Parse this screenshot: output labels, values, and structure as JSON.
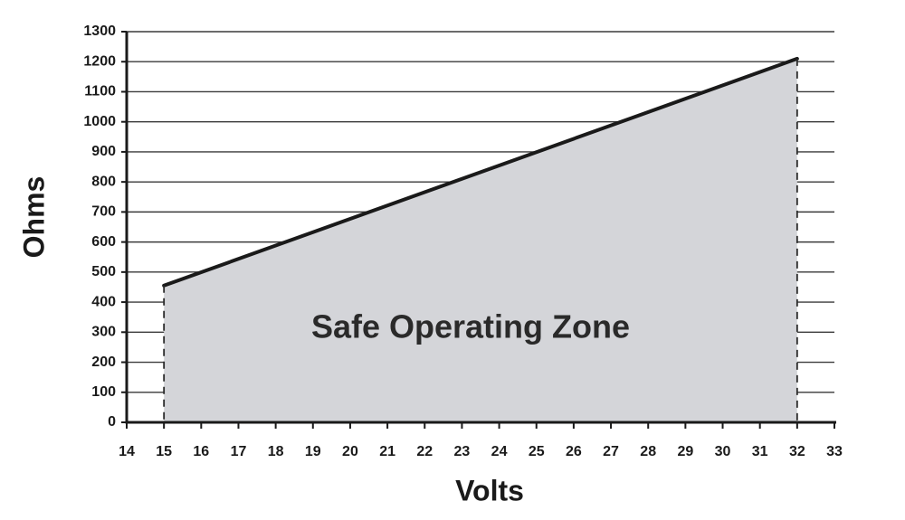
{
  "chart_data": {
    "type": "area",
    "title": "",
    "xlabel": "Volts",
    "ylabel": "Ohms",
    "annotation": "Safe Operating Zone",
    "xlim": [
      14,
      33
    ],
    "ylim": [
      0,
      1300
    ],
    "x_ticks": [
      14,
      15,
      16,
      17,
      18,
      19,
      20,
      21,
      22,
      23,
      24,
      25,
      26,
      27,
      28,
      29,
      30,
      31,
      32,
      33
    ],
    "y_ticks": [
      0,
      100,
      200,
      300,
      400,
      500,
      600,
      700,
      800,
      900,
      1000,
      1100,
      1200,
      1300
    ],
    "grid": "horizontal",
    "series": [
      {
        "x": [
          15,
          32
        ],
        "y": [
          455,
          1210
        ]
      }
    ],
    "dashed_verticals_at_x": [
      15,
      32
    ],
    "colors": {
      "fill": "#d4d5d9",
      "line": "#1a1a1a",
      "grid": "#3a3a3a",
      "text": "#1a1a1a"
    }
  }
}
